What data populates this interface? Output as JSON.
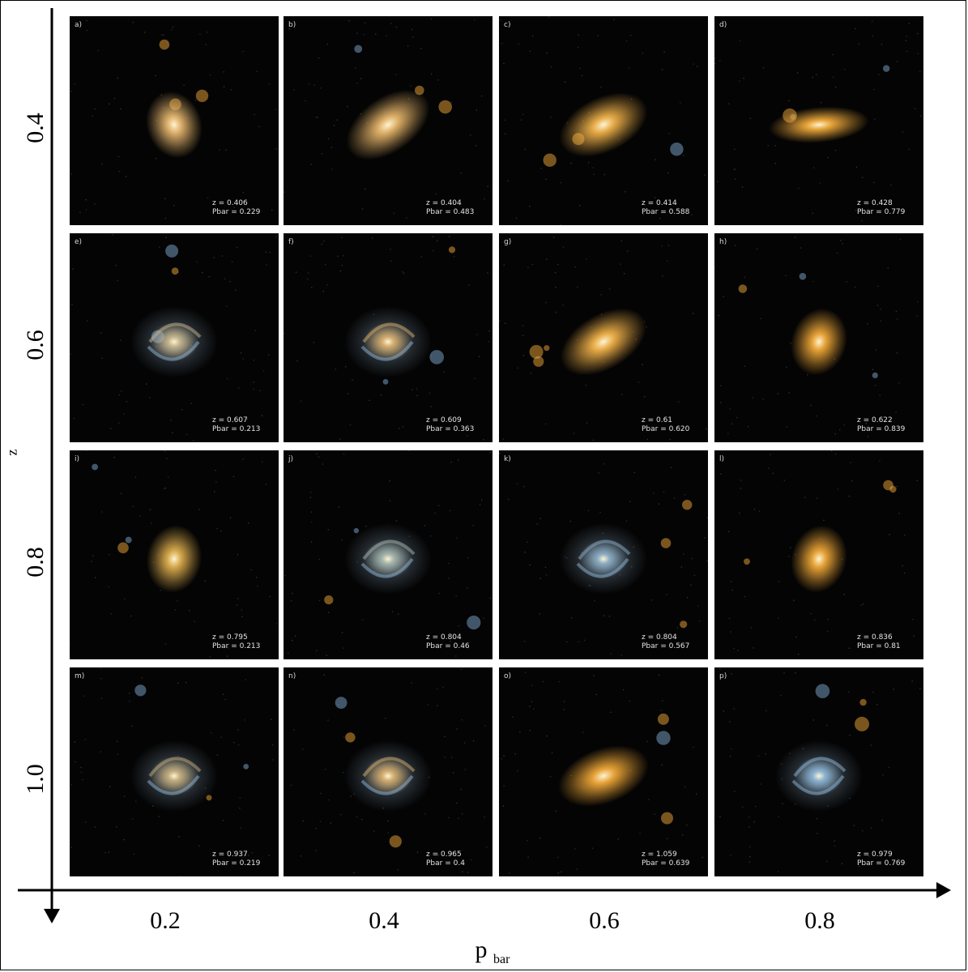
{
  "axes": {
    "y_label": "z",
    "x_label_main": "p",
    "x_label_sub": "bar",
    "row_labels": [
      "0.4",
      "0.6",
      "0.8",
      "1.0"
    ],
    "col_labels": [
      "0.2",
      "0.4",
      "0.6",
      "0.8"
    ]
  },
  "colors": {
    "galaxy_core": "#f2b24a",
    "galaxy_blue": "#7fb0d6",
    "background": "#040404"
  },
  "panels": [
    {
      "id": "a",
      "z": "z = 0.406",
      "p": "Pbar = 0.229",
      "type": "elliptical",
      "color": "#e8b870"
    },
    {
      "id": "b",
      "z": "z = 0.404",
      "p": "Pbar = 0.483",
      "type": "disk",
      "color": "#e6b56a"
    },
    {
      "id": "c",
      "z": "z = 0.414",
      "p": "Pbar = 0.588",
      "type": "disk",
      "color": "#f0b24a"
    },
    {
      "id": "d",
      "z": "z = 0.428",
      "p": "Pbar = 0.779",
      "type": "bar",
      "color": "#f2ac3c"
    },
    {
      "id": "e",
      "z": "z = 0.607",
      "p": "Pbar = 0.213",
      "type": "spiral",
      "color": "#c9b890"
    },
    {
      "id": "f",
      "z": "z = 0.609",
      "p": "Pbar = 0.363",
      "type": "spiral",
      "color": "#d9b070"
    },
    {
      "id": "g",
      "z": "z = 0.61",
      "p": "Pbar = 0.620",
      "type": "disk",
      "color": "#f2b24a"
    },
    {
      "id": "h",
      "z": "z = 0.622",
      "p": "Pbar = 0.839",
      "type": "elliptical",
      "color": "#f0a838"
    },
    {
      "id": "i",
      "z": "z = 0.795",
      "p": "Pbar = 0.213",
      "type": "elliptical",
      "color": "#e0b050"
    },
    {
      "id": "j",
      "z": "z = 0.804",
      "p": "Pbar = 0.46",
      "type": "spiral",
      "color": "#a9b8b0"
    },
    {
      "id": "k",
      "z": "z = 0.804",
      "p": "Pbar = 0.567",
      "type": "spiral",
      "color": "#8fb0c8"
    },
    {
      "id": "l",
      "z": "z = 0.836",
      "p": "Pbar = 0.81",
      "type": "elliptical",
      "color": "#f0a838"
    },
    {
      "id": "m",
      "z": "z = 0.937",
      "p": "Pbar = 0.219",
      "type": "spiral",
      "color": "#c8b080"
    },
    {
      "id": "n",
      "z": "z = 0.965",
      "p": "Pbar = 0.4",
      "type": "spiral",
      "color": "#d8b070"
    },
    {
      "id": "o",
      "z": "z = 1.059",
      "p": "Pbar = 0.639",
      "type": "disk",
      "color": "#f0a838"
    },
    {
      "id": "p",
      "z": "z = 0.979",
      "p": "Pbar = 0.769",
      "type": "spiral",
      "color": "#90b8d8"
    }
  ]
}
